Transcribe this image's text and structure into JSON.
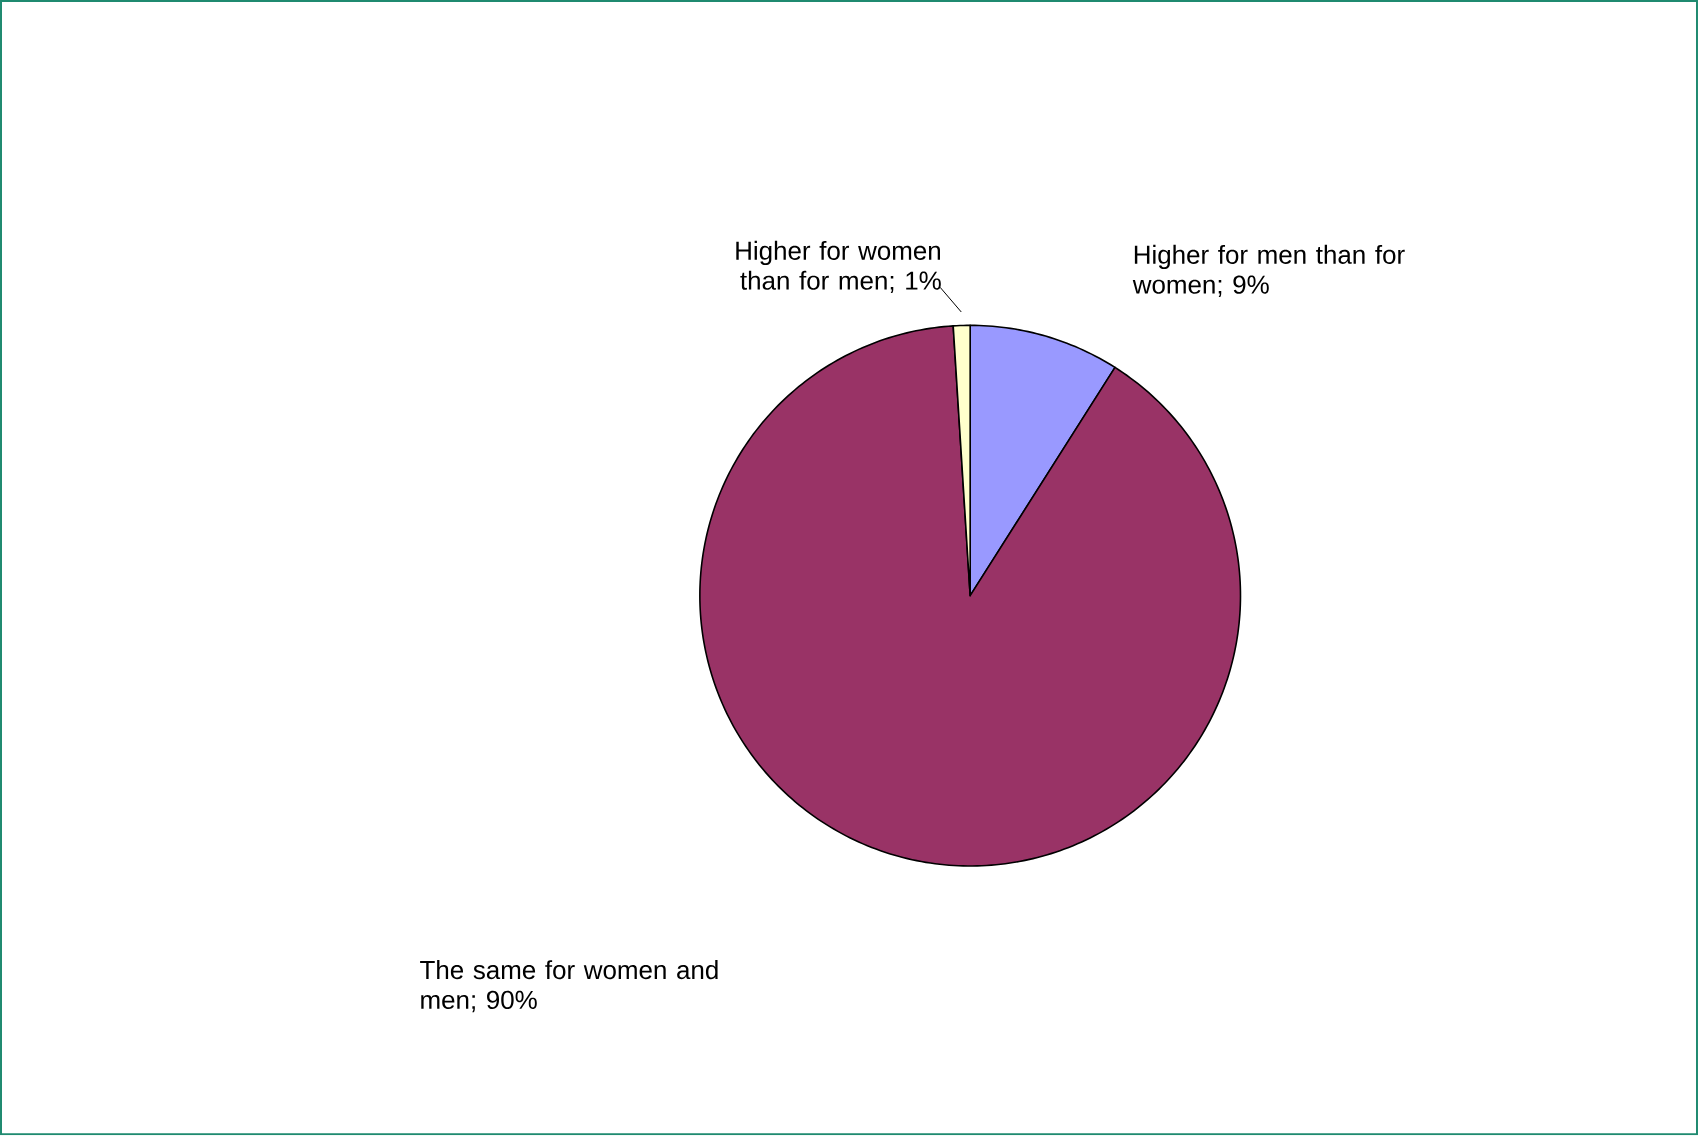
{
  "chart_data": {
    "type": "pie",
    "categories": [
      "Higher for men than for women",
      "The same for women and men",
      "Higher for women than for men"
    ],
    "values": [
      9,
      90,
      1
    ],
    "colors": [
      "#9999ff",
      "#993366",
      "#ffffcc"
    ],
    "value_labels": [
      "; 9%",
      "; 90%",
      "; 1%"
    ]
  }
}
